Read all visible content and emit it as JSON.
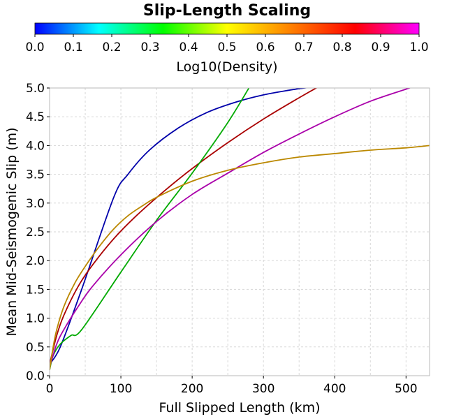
{
  "chart_data": {
    "type": "line",
    "title": "Slip-Length Scaling",
    "colorbar": {
      "label": "Log10(Density)",
      "range": [
        0.0,
        1.0
      ],
      "ticks": [
        "0.0",
        "0.1",
        "0.2",
        "0.3",
        "0.4",
        "0.5",
        "0.6",
        "0.7",
        "0.8",
        "0.9",
        "1.0"
      ],
      "stops": [
        "#0000ff",
        "#00ffff",
        "#00ff00",
        "#ffff00",
        "#ff8000",
        "#ff0000",
        "#ff00ff"
      ]
    },
    "xlabel": "Full Slipped Length (km)",
    "ylabel": "Mean Mid-Seismogenic Slip (m)",
    "xlim": [
      0,
      533
    ],
    "ylim": [
      0,
      5.0
    ],
    "xticks": [
      0,
      100,
      200,
      300,
      400,
      500
    ],
    "yticks": [
      0.0,
      0.5,
      1.0,
      1.5,
      2.0,
      2.5,
      3.0,
      3.5,
      4.0,
      4.5,
      5.0
    ],
    "ytick_labels": [
      "0.0",
      "0.5",
      "1.0",
      "1.5",
      "2.0",
      "2.5",
      "3.0",
      "3.5",
      "4.0",
      "4.5",
      "5.0"
    ],
    "grid": true,
    "series": [
      {
        "color": "#0000aa",
        "x": [
          0,
          15,
          45,
          90,
          110,
          140,
          180,
          220,
          260,
          300,
          340,
          370,
          390
        ],
        "y": [
          0.2,
          0.5,
          1.5,
          3.1,
          3.5,
          3.92,
          4.3,
          4.57,
          4.75,
          4.88,
          4.97,
          5.02,
          5.05
        ]
      },
      {
        "color": "#aa0000",
        "x": [
          0,
          10,
          20,
          40,
          60,
          90,
          120,
          160,
          200,
          250,
          300,
          350,
          380,
          393
        ],
        "y": [
          0.2,
          0.7,
          1.05,
          1.55,
          1.92,
          2.38,
          2.76,
          3.2,
          3.6,
          4.05,
          4.46,
          4.83,
          5.04,
          5.12
        ]
      },
      {
        "color": "#00aa00",
        "x": [
          0,
          5,
          15,
          30,
          45,
          100,
          150,
          200,
          250,
          282
        ],
        "y": [
          0.1,
          0.35,
          0.55,
          0.7,
          0.8,
          1.8,
          2.7,
          3.52,
          4.4,
          5.05
        ]
      },
      {
        "color": "#aa00aa",
        "x": [
          0,
          10,
          20,
          40,
          60,
          100,
          150,
          200,
          250,
          300,
          350,
          400,
          450,
          500,
          524
        ],
        "y": [
          0.15,
          0.55,
          0.8,
          1.2,
          1.55,
          2.1,
          2.68,
          3.15,
          3.52,
          3.88,
          4.2,
          4.5,
          4.77,
          4.98,
          5.08
        ]
      },
      {
        "color": "#bb8800",
        "x": [
          0,
          5,
          10,
          20,
          35,
          50,
          70,
          90,
          110,
          130,
          150,
          200,
          250,
          300,
          350,
          400,
          450,
          500,
          533
        ],
        "y": [
          0.1,
          0.5,
          0.8,
          1.2,
          1.6,
          1.9,
          2.25,
          2.55,
          2.78,
          2.95,
          3.1,
          3.38,
          3.57,
          3.7,
          3.8,
          3.86,
          3.92,
          3.96,
          4.0
        ]
      }
    ]
  }
}
